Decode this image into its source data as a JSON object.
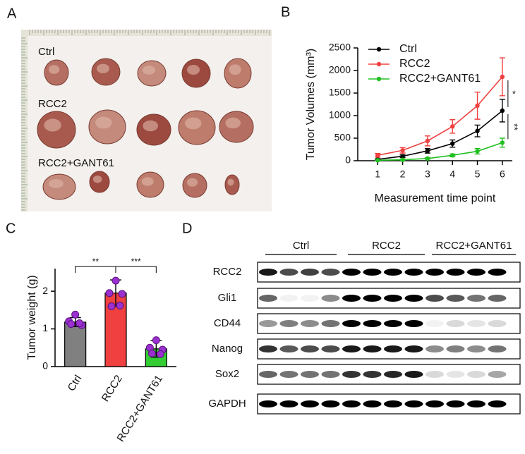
{
  "panel_labels": [
    "A",
    "B",
    "C",
    "D"
  ],
  "photo": {
    "row_labels": [
      "Ctrl",
      "RCC2",
      "RCC2+GANT61"
    ]
  },
  "blot": {
    "groups": [
      "Ctrl",
      "RCC2",
      "RCC2+GANT61"
    ],
    "rows": [
      "RCC2",
      "Gli1",
      "CD44",
      "Nanog",
      "Sox2",
      "GAPDH"
    ]
  },
  "chart_data": [
    {
      "type": "line",
      "y_label": "Tumor Volumes (mm³)",
      "x_label": "Measurement time point",
      "x": [
        1,
        2,
        3,
        4,
        5,
        6
      ],
      "xlim": [
        0.2,
        6.4
      ],
      "xticks": [
        1,
        2,
        3,
        4,
        5,
        6
      ],
      "ylim": [
        0,
        2500
      ],
      "yticks": [
        0,
        500,
        1000,
        1500,
        2000,
        2500
      ],
      "legend": "upper left",
      "series": [
        {
          "name": "Ctrl",
          "color": "#000000",
          "values": [
            30,
            100,
            220,
            380,
            660,
            1110
          ],
          "errors": [
            10,
            30,
            50,
            80,
            130,
            250
          ]
        },
        {
          "name": "RCC2",
          "color": "#f04040",
          "values": [
            120,
            230,
            440,
            760,
            1220,
            1860
          ],
          "errors": [
            40,
            60,
            110,
            150,
            300,
            420
          ]
        },
        {
          "name": "RCC2+GANT61",
          "color": "#22c022",
          "values": [
            10,
            20,
            50,
            120,
            210,
            400
          ],
          "errors": [
            5,
            10,
            15,
            30,
            60,
            100
          ]
        }
      ],
      "annotations": [
        "*",
        "**"
      ]
    },
    {
      "type": "bar",
      "y_label": "Tumor  weight (g)",
      "categories": [
        "Ctrl",
        "RCC2",
        "RCC2+GANT61"
      ],
      "colors": [
        "#808080",
        "#f04040",
        "#33cc33"
      ],
      "values": [
        1.18,
        1.95,
        0.47
      ],
      "errors": [
        0.12,
        0.35,
        0.22
      ],
      "points": [
        [
          1.38,
          1.2,
          1.1,
          1.13,
          1.15
        ],
        [
          2.28,
          1.95,
          1.93,
          1.6,
          1.62
        ],
        [
          0.7,
          0.5,
          0.45,
          0.35,
          0.33
        ]
      ],
      "point_color": "#9b30d0",
      "ylim": [
        0,
        2.6
      ],
      "yticks": [
        0,
        1,
        2
      ],
      "annotations": [
        "**",
        "***"
      ]
    }
  ]
}
